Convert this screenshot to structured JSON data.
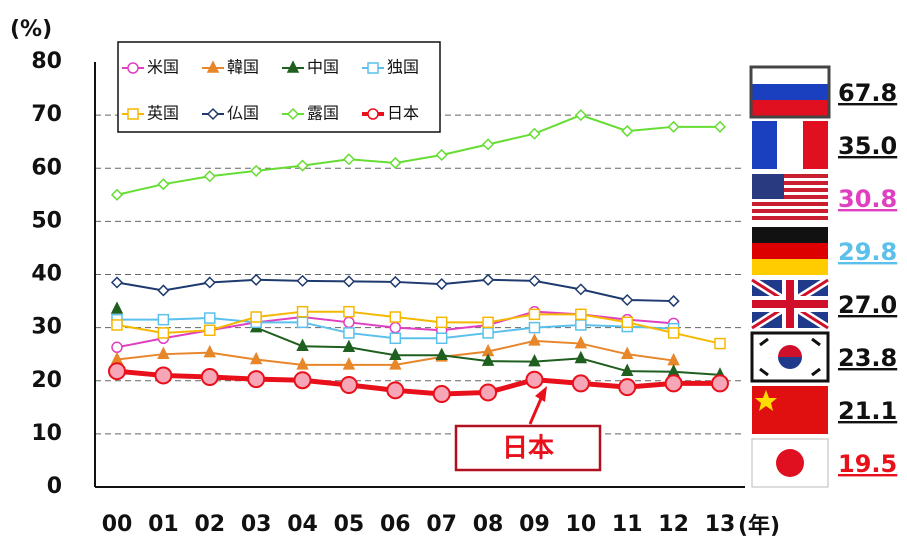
{
  "chart_data": {
    "type": "line",
    "y_unit_label": "(%)",
    "x_unit_label": "(年)",
    "categories": [
      "00",
      "01",
      "02",
      "03",
      "04",
      "05",
      "06",
      "07",
      "08",
      "09",
      "10",
      "11",
      "12",
      "13"
    ],
    "ylim": [
      0,
      80
    ],
    "yticks": [
      0,
      10,
      20,
      30,
      40,
      50,
      60,
      70,
      80
    ],
    "grid": true,
    "series": [
      {
        "name": "米国",
        "color": "#e040c0",
        "marker": "circle",
        "values": [
          26.3,
          28,
          29.5,
          31,
          32,
          31,
          30,
          29.5,
          30.5,
          33,
          32.5,
          31.5,
          30.8,
          null
        ]
      },
      {
        "name": "韓国",
        "color": "#e8862a",
        "marker": "triangle",
        "values": [
          24,
          25,
          25.3,
          24,
          23,
          23,
          23,
          24.5,
          25.5,
          27.5,
          27,
          25,
          23.8,
          null
        ]
      },
      {
        "name": "中国",
        "color": "#1f5f1f",
        "marker": "triangle",
        "values": [
          33.5,
          null,
          null,
          30,
          26.5,
          26.3,
          24.8,
          24.8,
          23.7,
          23.6,
          24.2,
          21.8,
          21.7,
          21.1
        ]
      },
      {
        "name": "独国",
        "color": "#5bc0eb",
        "marker": "square",
        "values": [
          31.5,
          31.5,
          31.8,
          31,
          31,
          29,
          28,
          28,
          29,
          30,
          30.5,
          30.2,
          29.8,
          null
        ]
      },
      {
        "name": "英国",
        "color": "#f5b800",
        "marker": "square",
        "values": [
          30.5,
          29,
          29.5,
          32,
          33,
          33,
          32,
          31,
          31,
          32.5,
          32.5,
          31,
          29,
          27.0
        ]
      },
      {
        "name": "仏国",
        "color": "#1f3a6e",
        "marker": "diamond",
        "values": [
          38.5,
          37,
          38.5,
          39,
          38.8,
          38.7,
          38.6,
          38.2,
          39,
          38.8,
          37.2,
          35.2,
          35.0,
          null
        ]
      },
      {
        "name": "露国",
        "color": "#66dd33",
        "marker": "diamond",
        "values": [
          55,
          57,
          58.5,
          59.5,
          60.5,
          61.7,
          61,
          62.5,
          64.5,
          66.5,
          70,
          67,
          67.8,
          67.8
        ]
      },
      {
        "name": "日本",
        "color": "#e8101a",
        "marker": "circle",
        "values": [
          21.8,
          21,
          20.7,
          20.3,
          20.1,
          19.2,
          18.2,
          17.5,
          17.8,
          20.2,
          19.5,
          18.8,
          19.5,
          19.5
        ]
      }
    ],
    "annotation": "日本",
    "side_labels": [
      {
        "label": "67.8",
        "color": "#111111"
      },
      {
        "label": "35.0",
        "color": "#111111"
      },
      {
        "label": "30.8",
        "color": "#e040c0"
      },
      {
        "label": "29.8",
        "color": "#5bc0eb"
      },
      {
        "label": "27.0",
        "color": "#111111"
      },
      {
        "label": "23.8",
        "color": "#111111"
      },
      {
        "label": "21.1",
        "color": "#111111"
      },
      {
        "label": "19.5",
        "color": "#e8101a"
      }
    ]
  }
}
